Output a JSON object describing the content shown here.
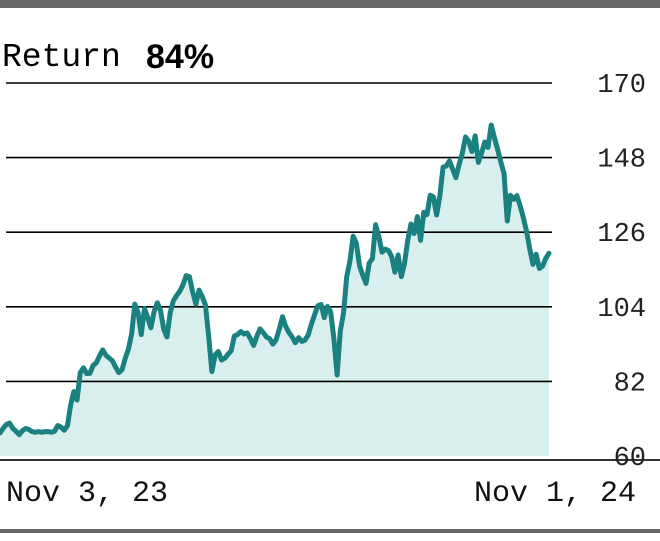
{
  "header": {
    "label": "Return",
    "value": "84%"
  },
  "colors": {
    "line": "#1a8080",
    "fill": "#d8efee",
    "grid": "#000000",
    "frame": "#666666"
  },
  "chart_data": {
    "type": "area",
    "title": "",
    "xlabel": "",
    "ylabel": "",
    "ylim": [
      60,
      170
    ],
    "yticks": [
      60,
      82,
      104,
      126,
      148,
      170
    ],
    "ytick_labels": [
      "60",
      "82",
      "104",
      "126",
      "148",
      "170"
    ],
    "x_start_label": "Nov 3, 23",
    "x_end_label": "Nov 1, 24",
    "grid": true,
    "legend": "none",
    "series": [
      {
        "values": [
          66.8,
          68.2,
          69.3,
          69.7,
          68.1,
          67.3,
          66.3,
          67.5,
          68.1,
          67.8,
          67.2,
          67.0,
          67.2,
          67.0,
          67.2,
          67.2,
          67.0,
          67.3,
          69.0,
          68.5,
          67.6,
          68.9,
          75.0,
          79.0,
          76.5,
          84.6,
          86.0,
          84.3,
          84.4,
          86.7,
          87.5,
          89.5,
          91.3,
          89.7,
          88.9,
          88.1,
          86.2,
          84.6,
          85.4,
          88.8,
          91.5,
          96.0,
          104.8,
          102.3,
          95.8,
          103.5,
          100.9,
          97.8,
          102.6,
          105.2,
          102.9,
          97.4,
          95.1,
          102.2,
          105.8,
          107.3,
          108.6,
          110.5,
          113.2,
          112.9,
          108.4,
          104.8,
          108.9,
          107.0,
          104.5,
          95.2,
          84.9,
          89.8,
          90.8,
          88.3,
          88.8,
          90.0,
          91.0,
          95.4,
          95.8,
          96.7,
          96.0,
          96.3,
          94.6,
          92.6,
          95.3,
          97.5,
          96.4,
          95.1,
          94.6,
          93.0,
          94.3,
          97.5,
          101.1,
          98.2,
          96.4,
          95.1,
          93.4,
          94.9,
          93.8,
          94.2,
          95.7,
          98.9,
          101.7,
          104.3,
          104.7,
          100.8,
          104.1,
          102.5,
          94.6,
          83.9,
          96.9,
          102.2,
          112.9,
          117.5,
          124.8,
          122.7,
          116.0,
          113.3,
          110.9,
          116.9,
          118.2,
          128.2,
          124.7,
          120.1,
          121.0,
          120.6,
          118.8,
          114.2,
          119.3,
          112.9,
          116.8,
          123.6,
          128.4,
          125.6,
          130.6,
          123.6,
          131.9,
          131.2,
          136.9,
          136.4,
          131.1,
          136.7,
          145.2,
          145.5,
          147.0,
          144.6,
          142.1,
          146.0,
          149.3,
          154.1,
          152.8,
          149.8,
          154.4,
          146.6,
          149.3,
          152.6,
          151.0,
          157.6,
          153.9,
          150.4,
          146.7,
          143.3,
          129.3,
          136.9,
          135.7,
          136.8,
          133.8,
          130.3,
          126.3,
          121.1,
          116.5,
          119.5,
          115.3,
          116.0,
          118.3,
          119.8
        ]
      }
    ]
  }
}
